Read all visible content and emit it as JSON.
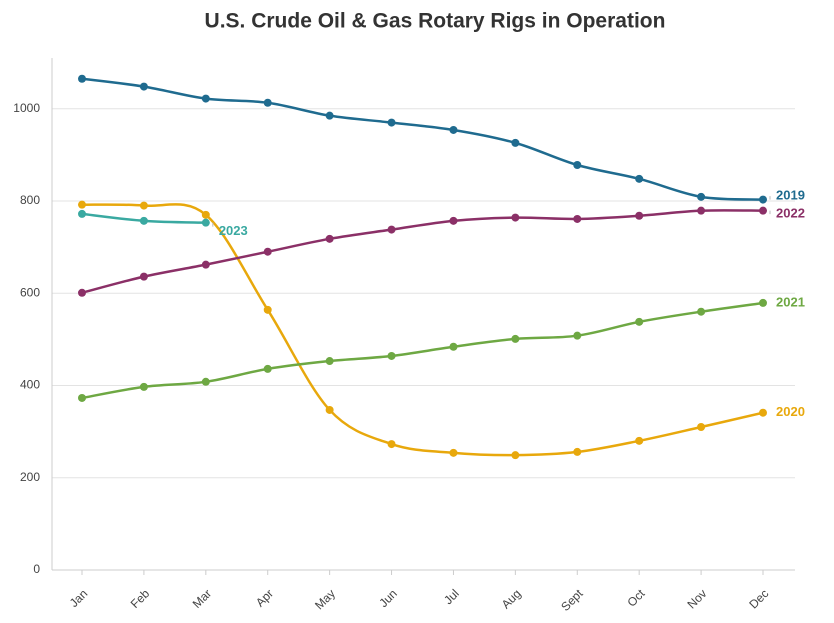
{
  "chart_data": {
    "type": "line",
    "title": "U.S. Crude Oil & Gas Rotary Rigs in Operation",
    "categories": [
      "Jan",
      "Feb",
      "Mar",
      "Apr",
      "May",
      "Jun",
      "Jul",
      "Aug",
      "Sept",
      "Oct",
      "Nov",
      "Dec"
    ],
    "series": [
      {
        "name": "2019",
        "color": "#1f6b8f",
        "values": [
          1065,
          1048,
          1022,
          1013,
          985,
          970,
          954,
          926,
          878,
          848,
          809,
          803
        ]
      },
      {
        "name": "2020",
        "color": "#e8a80c",
        "values": [
          792,
          790,
          770,
          564,
          347,
          273,
          254,
          249,
          256,
          280,
          310,
          341
        ]
      },
      {
        "name": "2021",
        "color": "#6ea843",
        "values": [
          373,
          397,
          408,
          436,
          453,
          464,
          484,
          501,
          508,
          538,
          560,
          579
        ]
      },
      {
        "name": "2022",
        "color": "#8b3067",
        "values": [
          601,
          636,
          662,
          690,
          718,
          738,
          757,
          764,
          761,
          768,
          779,
          779
        ]
      },
      {
        "name": "2023",
        "color": "#3aa9a1",
        "values": [
          772,
          757,
          753,
          null,
          null,
          null,
          null,
          null,
          null,
          null,
          null,
          null
        ]
      }
    ],
    "ylim": [
      0,
      1110
    ],
    "yticks": [
      0,
      200,
      400,
      600,
      800,
      1000
    ],
    "grid": true
  }
}
